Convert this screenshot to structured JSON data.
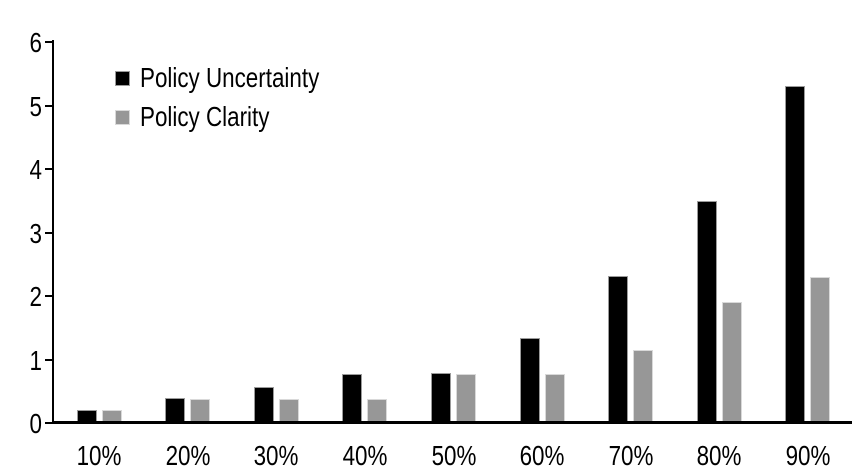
{
  "chart_data": {
    "type": "bar",
    "title": "",
    "categories": [
      "10%",
      "20%",
      "30%",
      "40%",
      "50%",
      "60%",
      "70%",
      "80%",
      "90%"
    ],
    "series": [
      {
        "name": "Policy Uncertainty",
        "color": "#000000",
        "border_color": "#9b9b9b",
        "values": [
          0.2,
          0.4,
          0.57,
          0.77,
          0.78,
          1.34,
          2.31,
          3.5,
          5.3
        ]
      },
      {
        "name": "Policy Clarity",
        "color": "#979797",
        "border_color": "#d9d9d9",
        "values": [
          0.2,
          0.38,
          0.38,
          0.38,
          0.77,
          0.77,
          1.15,
          1.9,
          2.3
        ]
      }
    ],
    "xlabel": "",
    "ylabel": "",
    "ylim": [
      0,
      6
    ],
    "yticks": [
      0,
      1,
      2,
      3,
      4,
      5,
      6
    ],
    "grid": false,
    "legend_position": "top-left",
    "axis_color": "#000000",
    "background": "#ffffff"
  }
}
